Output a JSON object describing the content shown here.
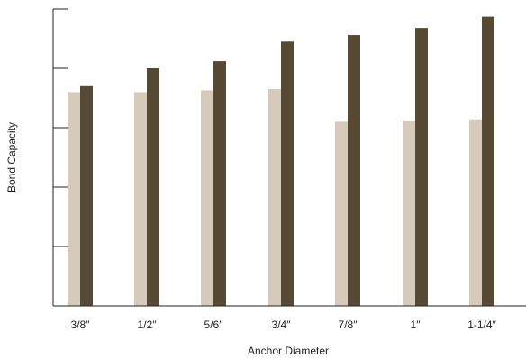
{
  "chart_data": {
    "type": "bar",
    "title": "",
    "xlabel": "Anchor Diameter",
    "ylabel": "Bond Capacity",
    "categories": [
      "3/8″",
      "1/2″",
      "5/6″",
      "3/4″",
      "7/8″",
      "1″",
      "1-1/4″"
    ],
    "ylim": [
      0,
      5
    ],
    "yticks": [
      0,
      1,
      2,
      3,
      4,
      5
    ],
    "show_ytick_labels": false,
    "grid": false,
    "legend": "none",
    "series": [
      {
        "values": [
          3.6,
          3.6,
          3.63,
          3.65,
          3.1,
          3.12,
          3.14
        ],
        "color": "#d6cbbb"
      },
      {
        "values": [
          3.7,
          4.0,
          4.12,
          4.45,
          4.56,
          4.68,
          4.87
        ],
        "color": "#574a35"
      }
    ]
  }
}
